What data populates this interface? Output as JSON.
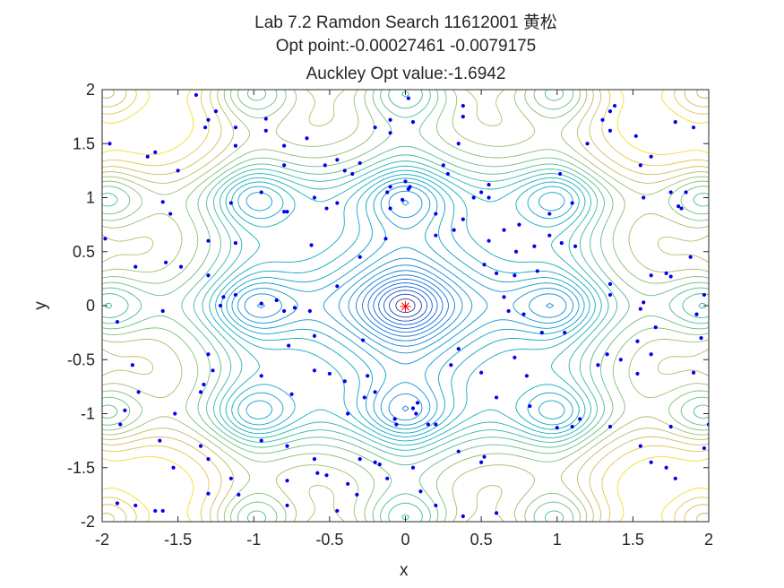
{
  "chart_data": {
    "type": "contour",
    "title_lines": [
      "Lab 7.2 Ramdon Search 11612001 黄松",
      "Opt point:-0.00027461  -0.0079175",
      "Auckley Opt value:-1.6942"
    ],
    "xlabel": "x",
    "ylabel": "y",
    "xlim": [
      -2,
      2
    ],
    "ylim": [
      -2,
      2
    ],
    "xticks": [
      "-2",
      "-1.5",
      "-1",
      "-0.5",
      "0",
      "0.5",
      "1",
      "1.5",
      "2"
    ],
    "yticks": [
      "-2",
      "-1.5",
      "-1",
      "-0.5",
      "0",
      "0.5",
      "1",
      "1.5",
      "2"
    ],
    "contour_levels": 26,
    "colormap": "parula",
    "sample_color": "#0000ee",
    "opt_marker_color": "#ff0000",
    "optimum": [
      -0.00027461,
      -0.0079175
    ],
    "samples": [
      [
        -1.95,
        1.5
      ],
      [
        -1.7,
        1.38
      ],
      [
        -1.65,
        1.42
      ],
      [
        -1.5,
        1.25
      ],
      [
        -1.38,
        1.95
      ],
      [
        -1.3,
        1.72
      ],
      [
        -1.25,
        1.8
      ],
      [
        -1.12,
        1.48
      ],
      [
        -1.32,
        1.65
      ],
      [
        -0.95,
        1.05
      ],
      [
        -0.78,
        0.87
      ],
      [
        -0.8,
        0.87
      ],
      [
        -1.15,
        0.95
      ],
      [
        -1.55,
        0.85
      ],
      [
        -1.6,
        0.96
      ],
      [
        -1.3,
        0.6
      ],
      [
        -1.12,
        0.58
      ],
      [
        -0.62,
        0.56
      ],
      [
        -1.98,
        0.62
      ],
      [
        -1.58,
        0.4
      ],
      [
        -1.78,
        0.36
      ],
      [
        -1.48,
        0.36
      ],
      [
        -1.3,
        0.28
      ],
      [
        -1.2,
        0.08
      ],
      [
        -1.12,
        0.1
      ],
      [
        -1.22,
        0.0
      ],
      [
        -0.95,
        0.02
      ],
      [
        -0.85,
        0.05
      ],
      [
        -0.73,
        -0.02
      ],
      [
        -0.8,
        -0.05
      ],
      [
        -0.63,
        -0.05
      ],
      [
        -0.6,
        -0.28
      ],
      [
        -0.77,
        -0.37
      ],
      [
        -0.95,
        -0.65
      ],
      [
        -1.33,
        -0.73
      ],
      [
        -1.3,
        -0.45
      ],
      [
        -1.27,
        -0.6
      ],
      [
        -1.35,
        -0.8
      ],
      [
        -1.8,
        -0.55
      ],
      [
        -1.85,
        -0.97
      ],
      [
        -1.88,
        -1.1
      ],
      [
        -1.76,
        -0.8
      ],
      [
        -1.9,
        -0.15
      ],
      [
        -1.62,
        -1.25
      ],
      [
        -1.53,
        -1.5
      ],
      [
        -1.35,
        -1.3
      ],
      [
        -1.52,
        -1.0
      ],
      [
        -1.15,
        -1.6
      ],
      [
        -1.1,
        -1.75
      ],
      [
        -0.78,
        -1.62
      ],
      [
        -1.3,
        -1.74
      ],
      [
        -1.6,
        -1.9
      ],
      [
        -1.9,
        -1.83
      ],
      [
        -1.65,
        -1.9
      ],
      [
        -1.78,
        -1.85
      ],
      [
        -1.3,
        -1.42
      ],
      [
        -0.95,
        -1.25
      ],
      [
        -0.78,
        -1.3
      ],
      [
        -0.6,
        -1.42
      ],
      [
        -0.58,
        -1.55
      ],
      [
        -0.52,
        -1.57
      ],
      [
        -0.78,
        -1.85
      ],
      [
        -0.45,
        -1.9
      ],
      [
        -0.3,
        -1.42
      ],
      [
        -0.2,
        -1.45
      ],
      [
        -0.17,
        -1.47
      ],
      [
        -0.38,
        -1.65
      ],
      [
        -0.32,
        -1.75
      ],
      [
        -0.12,
        -1.6
      ],
      [
        0.1,
        -1.72
      ],
      [
        0.2,
        -1.85
      ],
      [
        0.38,
        -1.95
      ],
      [
        0.6,
        -1.92
      ],
      [
        0.05,
        -1.5
      ],
      [
        0.2,
        -1.1
      ],
      [
        0.35,
        -1.35
      ],
      [
        0.5,
        -1.45
      ],
      [
        0.52,
        -1.4
      ],
      [
        -0.07,
        -1.05
      ],
      [
        -0.06,
        -1.1
      ],
      [
        0.07,
        -1.0
      ],
      [
        0.08,
        -0.9
      ],
      [
        0.05,
        -0.95
      ],
      [
        0.15,
        -1.1
      ],
      [
        -0.25,
        -0.65
      ],
      [
        -0.4,
        -0.7
      ],
      [
        -0.27,
        -0.85
      ],
      [
        -0.5,
        -0.63
      ],
      [
        -0.38,
        -1.0
      ],
      [
        -0.75,
        -0.82
      ],
      [
        -0.6,
        -0.6
      ],
      [
        -0.28,
        -0.32
      ],
      [
        -0.2,
        -0.8
      ],
      [
        0.35,
        -0.4
      ],
      [
        0.3,
        -0.55
      ],
      [
        0.5,
        -0.62
      ],
      [
        0.6,
        -0.85
      ],
      [
        0.82,
        -0.93
      ],
      [
        1.0,
        -1.13
      ],
      [
        1.1,
        -1.12
      ],
      [
        1.15,
        -1.05
      ],
      [
        1.35,
        -1.12
      ],
      [
        1.53,
        -0.63
      ],
      [
        1.62,
        -0.45
      ],
      [
        1.33,
        -0.45
      ],
      [
        1.27,
        -0.55
      ],
      [
        1.42,
        -0.5
      ],
      [
        1.53,
        -0.33
      ],
      [
        1.55,
        -1.3
      ],
      [
        1.62,
        -1.45
      ],
      [
        1.72,
        -1.5
      ],
      [
        1.75,
        -1.12
      ],
      [
        1.9,
        -0.62
      ],
      [
        1.95,
        -0.3
      ],
      [
        1.97,
        -1.32
      ],
      [
        2.0,
        -1.1
      ],
      [
        1.78,
        -1.6
      ],
      [
        1.65,
        -0.2
      ],
      [
        1.55,
        -0.03
      ],
      [
        1.35,
        0.1
      ],
      [
        1.62,
        0.28
      ],
      [
        1.72,
        0.3
      ],
      [
        1.88,
        0.45
      ],
      [
        1.92,
        -0.08
      ],
      [
        1.97,
        0.1
      ],
      [
        1.57,
        0.03
      ],
      [
        1.35,
        0.2
      ],
      [
        1.12,
        0.55
      ],
      [
        1.03,
        0.58
      ],
      [
        0.85,
        0.55
      ],
      [
        0.95,
        0.65
      ],
      [
        0.87,
        0.32
      ],
      [
        0.72,
        0.28
      ],
      [
        0.52,
        0.38
      ],
      [
        0.6,
        0.3
      ],
      [
        0.75,
        0.75
      ],
      [
        0.95,
        0.85
      ],
      [
        1.1,
        0.95
      ],
      [
        0.45,
        1.0
      ],
      [
        0.38,
        0.8
      ],
      [
        0.32,
        0.7
      ],
      [
        0.2,
        0.85
      ],
      [
        0.2,
        0.65
      ],
      [
        0.55,
        0.6
      ],
      [
        0.65,
        0.7
      ],
      [
        0.65,
        0.08
      ],
      [
        0.68,
        -0.05
      ],
      [
        0.78,
        -0.08
      ],
      [
        0.9,
        -0.25
      ],
      [
        1.05,
        -0.25
      ],
      [
        0.72,
        -0.48
      ],
      [
        0.8,
        -0.65
      ],
      [
        -0.12,
        1.05
      ],
      [
        -0.1,
        0.9
      ],
      [
        -0.02,
        0.98
      ],
      [
        0.03,
        1.1
      ],
      [
        -0.1,
        1.1
      ],
      [
        0.0,
        1.15
      ],
      [
        0.02,
        1.08
      ],
      [
        -0.13,
        0.62
      ],
      [
        -0.45,
        0.18
      ],
      [
        -0.3,
        0.45
      ],
      [
        -0.52,
        0.9
      ],
      [
        -0.45,
        0.95
      ],
      [
        -0.6,
        1.0
      ],
      [
        -0.35,
        1.22
      ],
      [
        -0.4,
        1.25
      ],
      [
        -0.45,
        1.35
      ],
      [
        -0.65,
        1.55
      ],
      [
        -0.8,
        1.48
      ],
      [
        -0.92,
        1.62
      ],
      [
        -0.92,
        1.73
      ],
      [
        -0.2,
        1.65
      ],
      [
        -0.3,
        1.32
      ],
      [
        -0.8,
        1.3
      ],
      [
        -0.53,
        1.3
      ],
      [
        -1.12,
        1.65
      ],
      [
        0.02,
        1.92
      ],
      [
        0.35,
        1.5
      ],
      [
        0.38,
        1.75
      ],
      [
        0.38,
        1.85
      ],
      [
        0.05,
        1.7
      ],
      [
        -0.1,
        1.6
      ],
      [
        -0.1,
        1.72
      ],
      [
        0.25,
        1.3
      ],
      [
        0.28,
        1.22
      ],
      [
        0.5,
        1.05
      ],
      [
        0.55,
        1.0
      ],
      [
        0.55,
        1.12
      ],
      [
        0.73,
        0.5
      ],
      [
        1.02,
        1.22
      ],
      [
        1.2,
        1.5
      ],
      [
        1.35,
        1.62
      ],
      [
        1.3,
        1.72
      ],
      [
        1.35,
        1.8
      ],
      [
        1.38,
        1.85
      ],
      [
        1.52,
        1.57
      ],
      [
        1.55,
        1.3
      ],
      [
        1.62,
        1.38
      ],
      [
        1.57,
        1.0
      ],
      [
        1.75,
        1.05
      ],
      [
        1.85,
        1.05
      ],
      [
        1.82,
        0.9
      ],
      [
        1.8,
        0.92
      ],
      [
        1.78,
        1.7
      ],
      [
        1.9,
        1.65
      ],
      [
        1.75,
        0.27
      ],
      [
        -1.6,
        -0.05
      ]
    ]
  }
}
